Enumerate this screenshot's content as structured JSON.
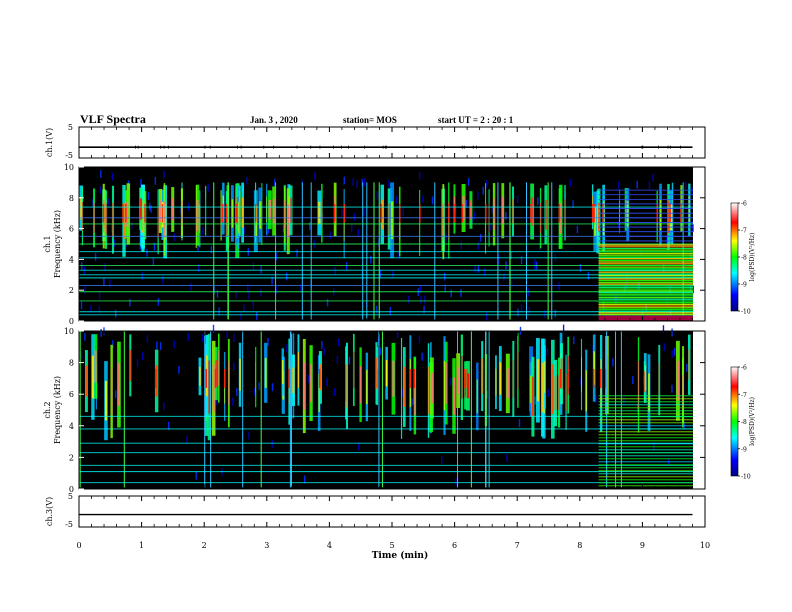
{
  "header": {
    "title": "VLF Spectra",
    "date": "Jan. 3 , 2020",
    "station": "station= MOS",
    "start": "start UT = 2 : 20 : 1"
  },
  "chart_data": [
    {
      "type": "line",
      "name": "ch1-voltage",
      "ylabel": "ch.1(V)",
      "ylim": [
        -5,
        5
      ],
      "yticks": [
        "5",
        "-5"
      ],
      "x": [
        0,
        9.8
      ],
      "y": [
        -1.5,
        -1.5
      ]
    },
    {
      "type": "heatmap",
      "name": "ch1-spectrogram",
      "ylabel_line1": "ch.1",
      "ylabel_line2": "Frequency (kHz)",
      "ylim": [
        0,
        10
      ],
      "yticks": [
        "0",
        "2",
        "4",
        "6",
        "8",
        "10"
      ],
      "xlim": [
        0,
        10
      ],
      "colorbar": {
        "label": "log(PSD)(V²/Hz)",
        "range": [
          -10,
          -6
        ],
        "ticks": [
          "-6",
          "-7",
          "-8",
          "-9",
          "-10"
        ]
      }
    },
    {
      "type": "heatmap",
      "name": "ch2-spectrogram",
      "ylabel_line1": "ch.2",
      "ylabel_line2": "Frequency (kHz)",
      "ylim": [
        0,
        10
      ],
      "yticks": [
        "0",
        "2",
        "4",
        "6",
        "8",
        "10"
      ],
      "xlim": [
        0,
        10
      ],
      "colorbar": {
        "label": "log(PSD)(V²/Hz)",
        "range": [
          -10,
          -6
        ],
        "ticks": [
          "-6",
          "-7",
          "-8",
          "-9",
          "-10"
        ]
      }
    },
    {
      "type": "line",
      "name": "ch3-voltage",
      "ylabel": "ch.3(V)",
      "ylim": [
        -5,
        5
      ],
      "yticks": [
        "5",
        "-5"
      ],
      "x": [
        0,
        9.8
      ],
      "y": [
        -1.0,
        -1.0
      ]
    }
  ],
  "xaxis": {
    "label": "Time (min)",
    "range": [
      0,
      10
    ],
    "ticks": [
      "0",
      "1",
      "2",
      "3",
      "4",
      "5",
      "6",
      "7",
      "8",
      "9",
      "10"
    ]
  }
}
